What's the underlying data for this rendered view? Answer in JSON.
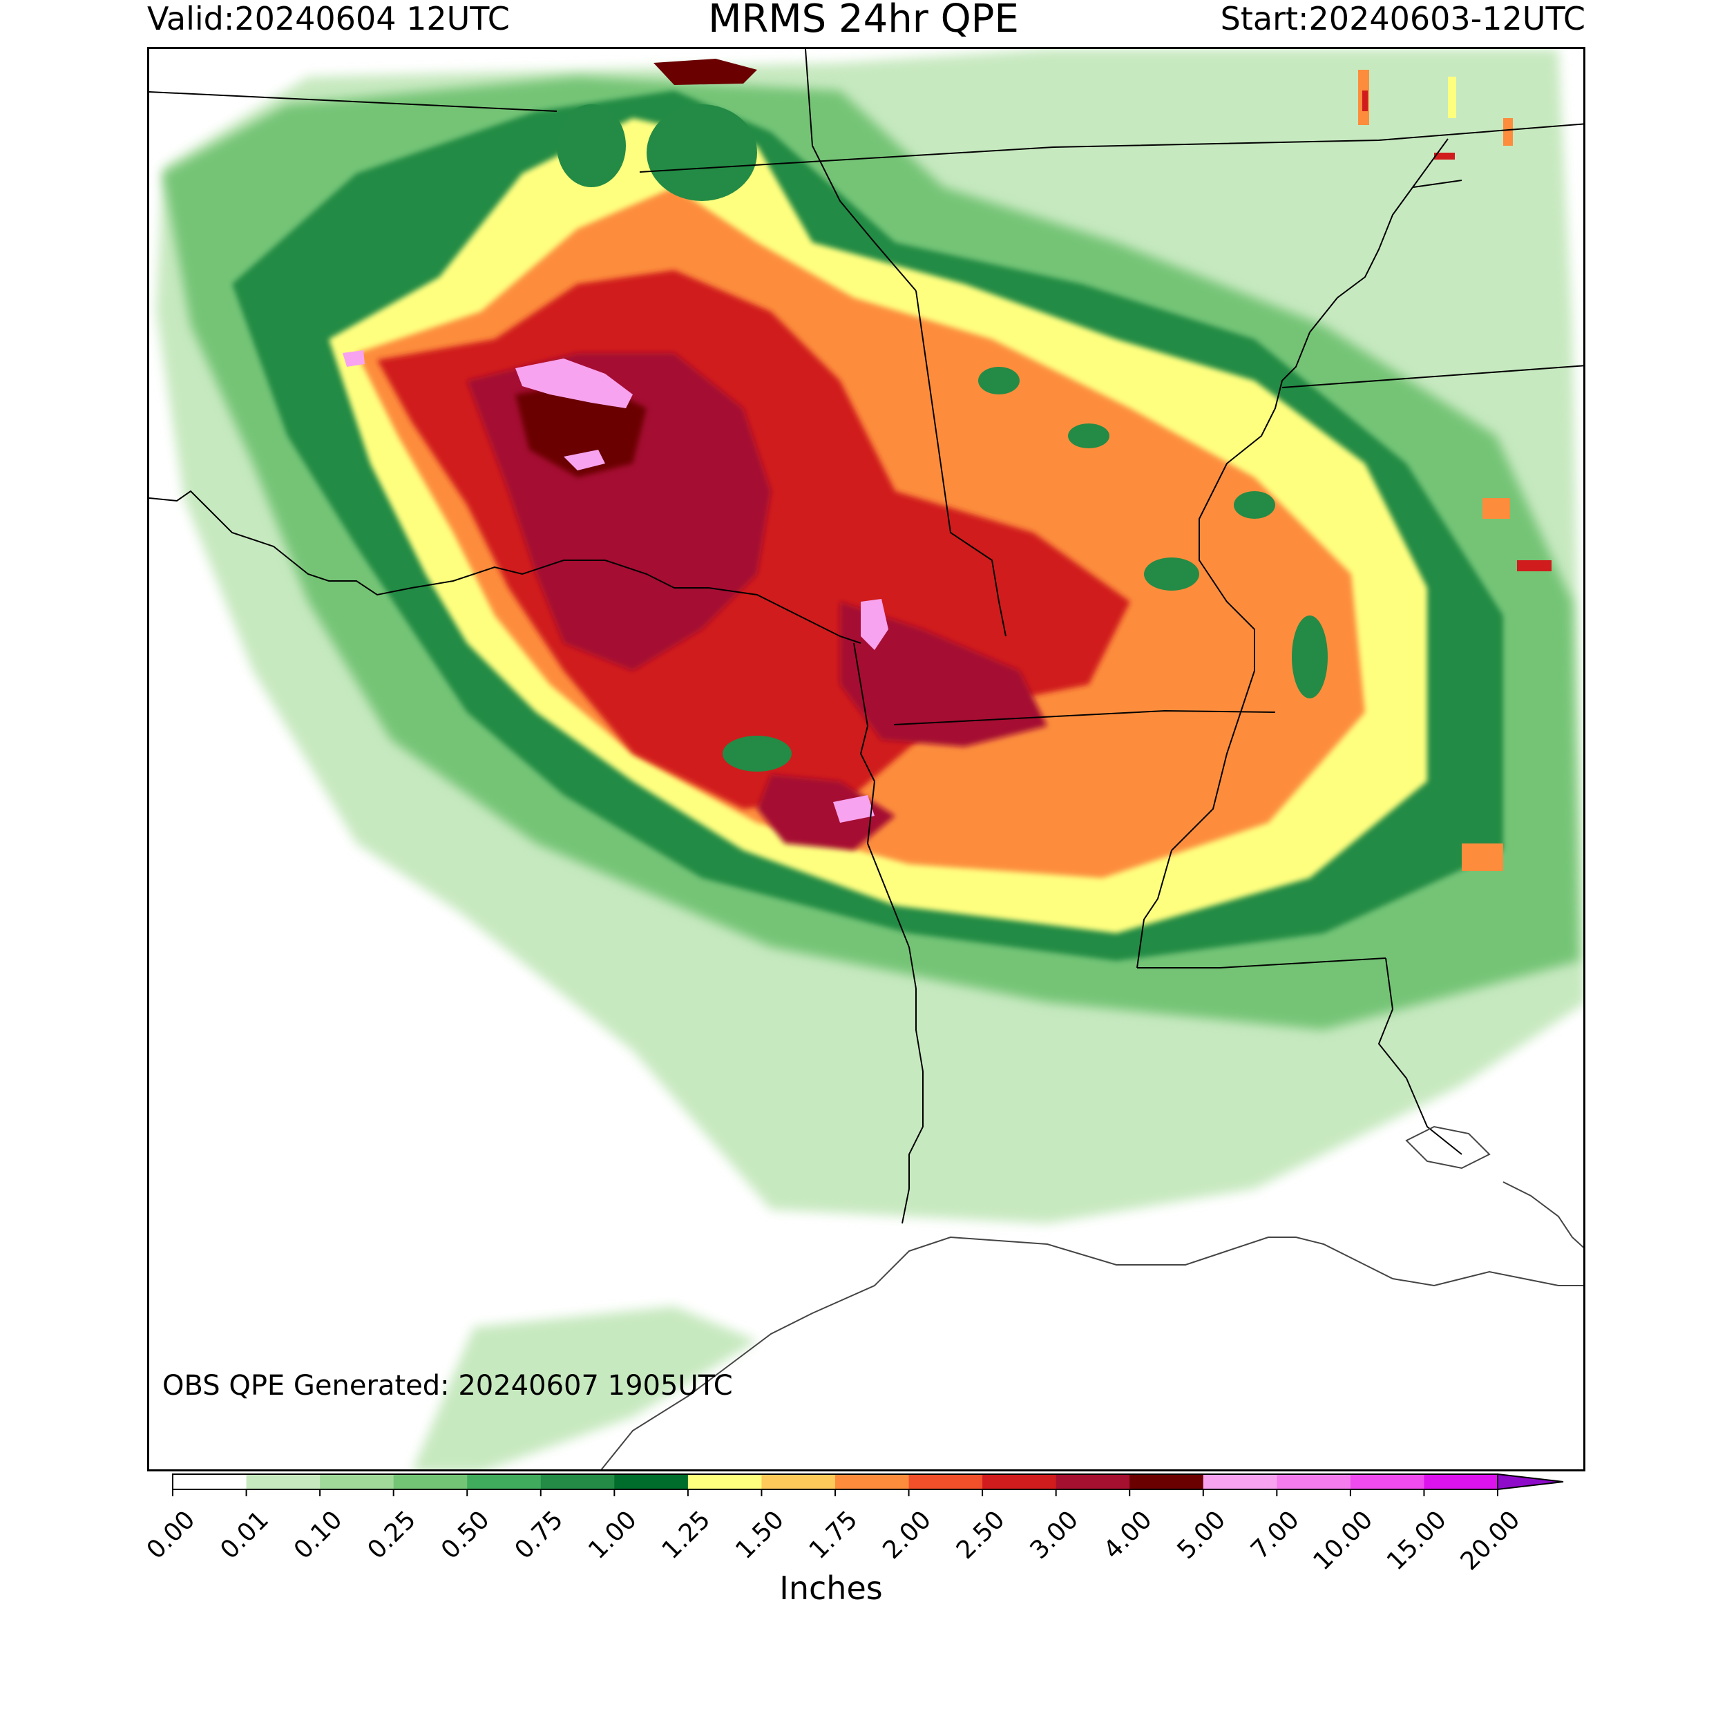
{
  "header": {
    "valid": "Valid:20240604 12UTC",
    "title": "MRMS 24hr QPE",
    "start": "Start:20240603-12UTC"
  },
  "map": {
    "generated_note": "OBS QPE Generated: 20240607 1905UTC"
  },
  "colorbar": {
    "label": "Inches",
    "ticks": [
      "0.00",
      "0.01",
      "0.10",
      "0.25",
      "0.50",
      "0.75",
      "1.00",
      "1.25",
      "1.50",
      "1.75",
      "2.00",
      "2.50",
      "3.00",
      "4.00",
      "5.00",
      "7.00",
      "10.00",
      "15.00",
      "20.00"
    ],
    "colors": [
      "#ffffff",
      "#c7e9c0",
      "#a1d99b",
      "#74c476",
      "#41ab5d",
      "#238b45",
      "#006d2c",
      "#ffff7f",
      "#fecb5a",
      "#fd8d3c",
      "#f1502b",
      "#d01c1c",
      "#a50f30",
      "#6a0000",
      "#f7a3f0",
      "#f47cec",
      "#ef4bef",
      "#dc13ec",
      "#8e0bc9"
    ],
    "extend": "max"
  },
  "palette": {
    "light_green": "#c7e9c0",
    "green": "#74c476",
    "dark_green": "#006d2c",
    "yellow": "#ffff7f",
    "orange": "#fd8d3c",
    "red": "#d01c1c",
    "dark_red": "#6a0000",
    "pink": "#f7a3f0"
  }
}
